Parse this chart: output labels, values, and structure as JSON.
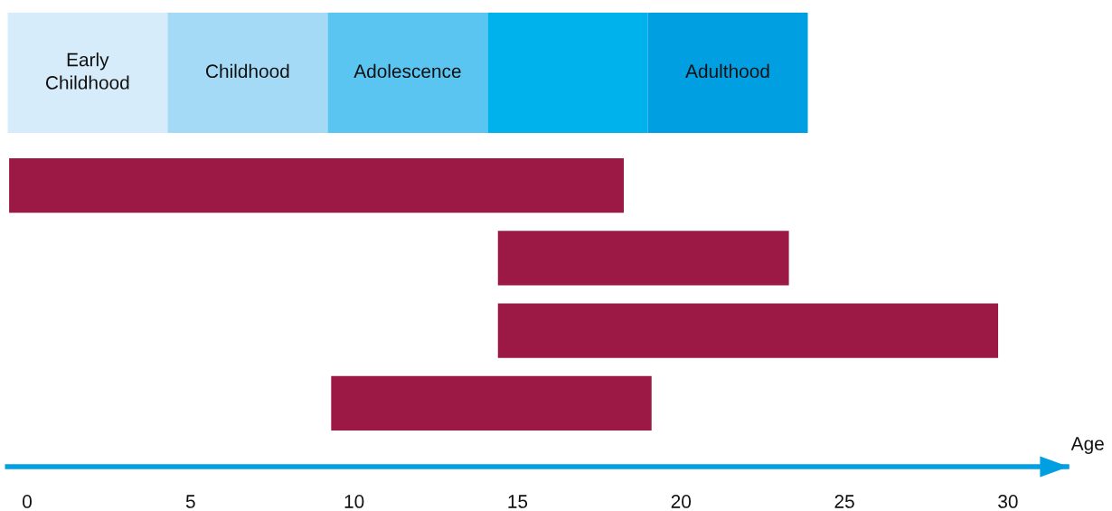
{
  "chart_data": [
    {
      "type": "other",
      "categories": [
        "Early\nChildhood",
        "Childhood",
        "Adolescence",
        null,
        "Adulthood"
      ],
      "colors": [
        "#d6ecfa",
        "#a5daf7",
        "#5bc5f2",
        "#00b2ec",
        "#009fe2"
      ]
    },
    {
      "type": "bar",
      "orientation": "horizontal",
      "categories": [
        null,
        null,
        null,
        null
      ],
      "color": "#9b1944",
      "base": [
        -0.55,
        14.4,
        14.4,
        9.3
      ],
      "values": [
        18.8,
        8.9,
        15.3,
        9.8
      ],
      "xlim": [
        -0.6,
        31.8
      ],
      "xticks": [
        0,
        5,
        10,
        15,
        20,
        25,
        30
      ],
      "xlabel": "Age",
      "tick_labels": "x",
      "grid": false
    }
  ]
}
